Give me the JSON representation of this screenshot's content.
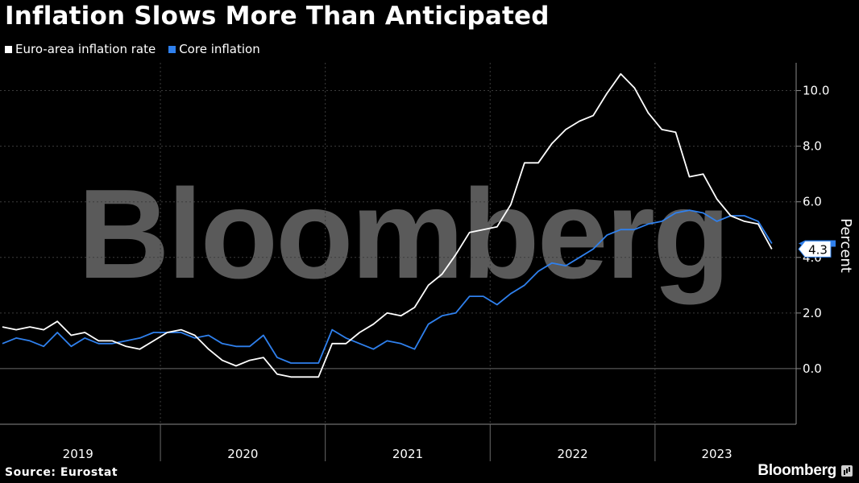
{
  "title": "Inflation Slows More Than Anticipated",
  "source": "Source: Eurostat",
  "brand": "Bloomberg",
  "watermark": "Bloomberg",
  "colors": {
    "background": "#000000",
    "headline": "#ffffff",
    "core": "#2f80ed",
    "grid": "#4a4a4a",
    "watermark": "#5a5a5a"
  },
  "chart_data": {
    "type": "line",
    "ylabel": "Percent",
    "ylim": [
      -2,
      11
    ],
    "yticks": [
      0,
      2,
      4,
      6,
      8,
      10
    ],
    "ytick_labels": [
      "0.0",
      "2.0",
      "4.0",
      "6.0",
      "8.0",
      "10.0"
    ],
    "x_start": "2019-01",
    "xlim": [
      "2019-01",
      "2023-09"
    ],
    "year_labels": [
      "2019",
      "2020",
      "2021",
      "2022",
      "2023"
    ],
    "year_boundaries": [
      "2020-01",
      "2021-01",
      "2022-01",
      "2023-01"
    ],
    "legend": "top-left",
    "grid": true,
    "last_value_label": "4.3",
    "series": [
      {
        "name": "Euro-area inflation rate",
        "color": "#ffffff",
        "values": [
          1.5,
          1.4,
          1.5,
          1.4,
          1.7,
          1.2,
          1.3,
          1.0,
          1.0,
          0.8,
          0.7,
          1.0,
          1.3,
          1.4,
          1.2,
          0.7,
          0.3,
          0.1,
          0.3,
          0.4,
          -0.2,
          -0.3,
          -0.3,
          -0.3,
          0.9,
          0.9,
          1.3,
          1.6,
          2.0,
          1.9,
          2.2,
          3.0,
          3.4,
          4.1,
          4.9,
          5.0,
          5.1,
          5.9,
          7.4,
          7.4,
          8.1,
          8.6,
          8.9,
          9.1,
          9.9,
          10.6,
          10.1,
          9.2,
          8.6,
          8.5,
          6.9,
          7.0,
          6.1,
          5.5,
          5.3,
          5.2,
          4.3
        ]
      },
      {
        "name": "Core inflation",
        "color": "#2f80ed",
        "values": [
          0.9,
          1.1,
          1.0,
          0.8,
          1.3,
          0.8,
          1.1,
          0.9,
          0.9,
          1.0,
          1.1,
          1.3,
          1.3,
          1.3,
          1.1,
          1.2,
          0.9,
          0.8,
          0.8,
          1.2,
          0.4,
          0.2,
          0.2,
          0.2,
          1.4,
          1.1,
          0.9,
          0.7,
          1.0,
          0.9,
          0.7,
          1.6,
          1.9,
          2.0,
          2.6,
          2.6,
          2.3,
          2.7,
          3.0,
          3.5,
          3.8,
          3.7,
          4.0,
          4.3,
          4.8,
          5.0,
          5.0,
          5.2,
          5.3,
          5.6,
          5.7,
          5.6,
          5.3,
          5.5,
          5.5,
          5.3,
          4.5
        ]
      }
    ]
  }
}
